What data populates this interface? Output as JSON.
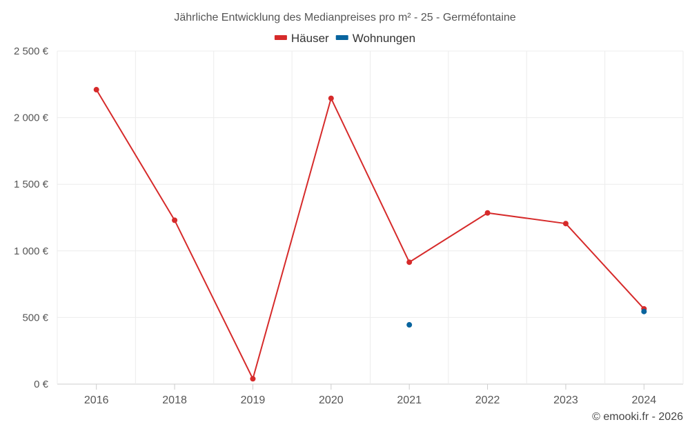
{
  "chart_data": {
    "type": "line",
    "title": "Jährliche Entwicklung des Medianpreises pro m² - 25 - Germéfontaine",
    "categories": [
      "2016",
      "2018",
      "2019",
      "2020",
      "2021",
      "2022",
      "2023",
      "2024"
    ],
    "y_tick_labels": [
      "0 €",
      "500 €",
      "1 000 €",
      "1 500 €",
      "2 000 €",
      "2 500 €"
    ],
    "y_ticks": [
      0,
      500,
      1000,
      1500,
      2000,
      2500
    ],
    "ylim": [
      0,
      2500
    ],
    "xlabel": "",
    "ylabel": "",
    "grid": true,
    "legend_position": "top-center",
    "series": [
      {
        "name": "Häuser",
        "color": "#d62a2a",
        "line": true,
        "values": [
          2210,
          1230,
          40,
          2145,
          915,
          1285,
          1205,
          565
        ]
      },
      {
        "name": "Wohnungen",
        "color": "#08649e",
        "line": false,
        "values": [
          null,
          null,
          null,
          null,
          445,
          null,
          null,
          545
        ]
      }
    ]
  },
  "footer": {
    "copyright": "© emooki.fr - 2026"
  }
}
